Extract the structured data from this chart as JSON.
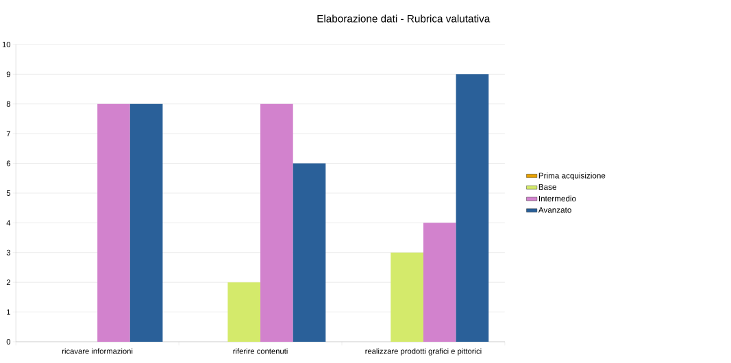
{
  "chart_data": {
    "type": "bar",
    "title": "Elaborazione dati - Rubrica valutativa",
    "categories": [
      "ricavare informazioni",
      "riferire contenuti",
      "realizzare prodotti grafici e pittorici"
    ],
    "series": [
      {
        "name": "Prima acquisizione",
        "color": "#e8a202",
        "values": [
          0,
          0,
          0
        ]
      },
      {
        "name": "Base",
        "color": "#d4ea6b",
        "values": [
          0,
          2,
          3
        ]
      },
      {
        "name": "Intermedio",
        "color": "#d282cd",
        "values": [
          8,
          8,
          4
        ]
      },
      {
        "name": "Avanzato",
        "color": "#2a6099",
        "values": [
          8,
          6,
          9
        ]
      }
    ],
    "ylim": [
      0,
      10
    ],
    "yticks": [
      0,
      1,
      2,
      3,
      4,
      5,
      6,
      7,
      8,
      9,
      10
    ],
    "grid": "y",
    "legend": "right"
  }
}
